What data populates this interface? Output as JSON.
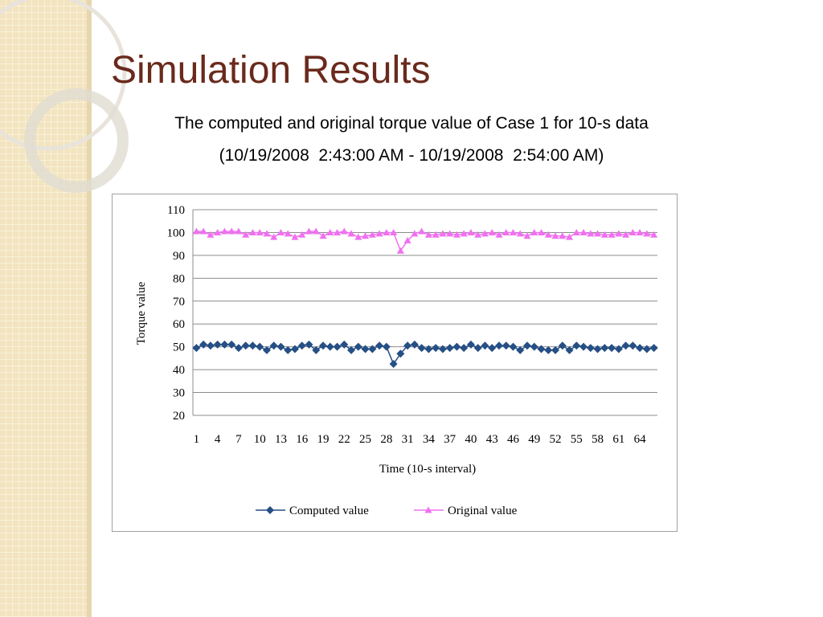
{
  "chart_data": {
    "type": "line",
    "title": "Simulation Results",
    "subtitle": [
      "The computed and original torque value of Case 1 for 10-s data",
      "(10/19/2008  2:43:00 AM - 10/19/2008  2:54:00 AM)"
    ],
    "x_label": "Time (10-s interval)",
    "y_label": "Torque value",
    "categories": [
      1,
      null,
      null,
      4,
      null,
      null,
      7,
      null,
      null,
      10,
      null,
      null,
      13,
      null,
      null,
      16,
      null,
      null,
      19,
      null,
      null,
      22,
      null,
      null,
      25,
      null,
      null,
      28,
      null,
      null,
      31,
      null,
      null,
      34,
      null,
      null,
      37,
      null,
      null,
      40,
      null,
      null,
      43,
      null,
      null,
      46,
      null,
      null,
      49,
      null,
      null,
      52,
      null,
      null,
      55,
      null,
      null,
      58,
      null,
      null,
      61,
      null,
      null,
      64,
      null,
      null
    ],
    "series": [
      {
        "name": "Computed value",
        "color": "#254f85",
        "marker": "diamond",
        "values": [
          49.5,
          51,
          50.5,
          51,
          51,
          51,
          49.5,
          50.5,
          50.5,
          50,
          48.5,
          50.5,
          50,
          48.5,
          49,
          50.5,
          51,
          48.5,
          50.5,
          50,
          50,
          51,
          48.5,
          50,
          49,
          49,
          50.5,
          50,
          42.5,
          47,
          50.5,
          51,
          49.5,
          49,
          49.5,
          49,
          49.5,
          50,
          49.5,
          51,
          49.5,
          50.5,
          49.5,
          50.5,
          50.5,
          50,
          48.5,
          50.5,
          50,
          49,
          48.5,
          48.5,
          50.5,
          48.5,
          50.5,
          50,
          49.5,
          49,
          49.5,
          49.5,
          49,
          50.5,
          50.5,
          49.5,
          49,
          49.5
        ]
      },
      {
        "name": "Original value",
        "color": "#f070f0",
        "marker": "triangle",
        "values": [
          100.5,
          100.5,
          99,
          100,
          100.5,
          100.5,
          100.5,
          99,
          100,
          100,
          99.5,
          98,
          100,
          99.5,
          98,
          99,
          100.5,
          100.5,
          98.5,
          100,
          100,
          100.5,
          99.5,
          98,
          98.5,
          99,
          99.5,
          100,
          100,
          92,
          96.5,
          99.5,
          100.5,
          99,
          99,
          99.5,
          99.5,
          99,
          99.5,
          100,
          99,
          99.5,
          100,
          99,
          100,
          100,
          99.5,
          98.5,
          100,
          100,
          99,
          98.5,
          98.5,
          98,
          100,
          100,
          99.5,
          99.5,
          99,
          99,
          99.5,
          99,
          100,
          100,
          99.5,
          99
        ]
      }
    ],
    "ylim": [
      20,
      110
    ],
    "yticks": [
      20,
      30,
      40,
      50,
      60,
      70,
      80,
      90,
      100,
      110
    ],
    "grid": true,
    "legend": "bottom"
  }
}
